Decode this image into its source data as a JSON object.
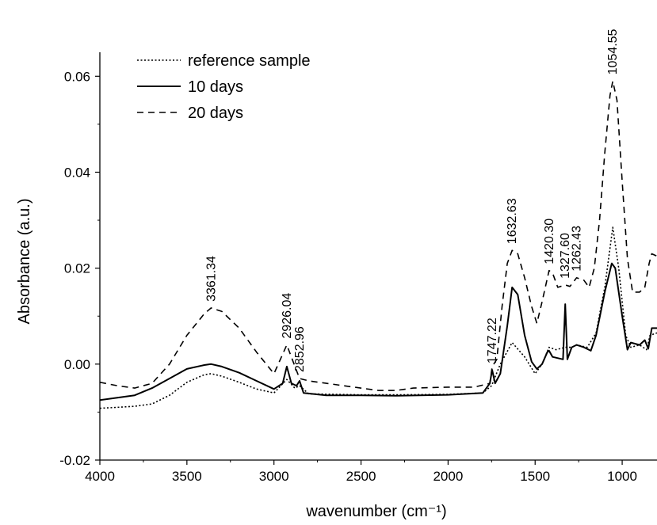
{
  "chart_data": {
    "type": "line",
    "title": "",
    "xlabel": "wavenumber (cm⁻¹)",
    "ylabel": "Absorbance (a.u.)",
    "xlim": [
      4000,
      800
    ],
    "ylim": [
      -0.02,
      0.065
    ],
    "x_reversed": true,
    "grid": false,
    "legend_position": "top-left",
    "x_ticks": [
      4000,
      3500,
      3000,
      2500,
      2000,
      1500,
      1000
    ],
    "x_tick_labels": [
      "4000",
      "3500",
      "3000",
      "2500",
      "2000",
      "1500",
      "1000"
    ],
    "y_ticks": [
      -0.02,
      0.0,
      0.02,
      0.04,
      0.06
    ],
    "y_tick_labels": [
      "-0.02",
      "0.00",
      "0.02",
      "0.04",
      "0.06"
    ],
    "series": [
      {
        "name": "reference sample",
        "style": "dotted",
        "points": [
          [
            4000,
            -0.0092
          ],
          [
            3900,
            -0.009
          ],
          [
            3800,
            -0.0088
          ],
          [
            3700,
            -0.0083
          ],
          [
            3600,
            -0.0065
          ],
          [
            3500,
            -0.0038
          ],
          [
            3400,
            -0.0022
          ],
          [
            3361,
            -0.002
          ],
          [
            3300,
            -0.0025
          ],
          [
            3200,
            -0.0038
          ],
          [
            3100,
            -0.0052
          ],
          [
            3000,
            -0.006
          ],
          [
            2926,
            -0.0032
          ],
          [
            2880,
            -0.005
          ],
          [
            2853,
            -0.0045
          ],
          [
            2800,
            -0.0062
          ],
          [
            2500,
            -0.0064
          ],
          [
            2300,
            -0.0064
          ],
          [
            2000,
            -0.0063
          ],
          [
            1800,
            -0.006
          ],
          [
            1750,
            -0.0045
          ],
          [
            1700,
            0.0
          ],
          [
            1632,
            0.0045
          ],
          [
            1560,
            0.0015
          ],
          [
            1500,
            -0.002
          ],
          [
            1460,
            0.0
          ],
          [
            1420,
            0.0035
          ],
          [
            1380,
            0.003
          ],
          [
            1327,
            0.0035
          ],
          [
            1290,
            0.0035
          ],
          [
            1262,
            0.004
          ],
          [
            1200,
            0.0035
          ],
          [
            1150,
            0.0065
          ],
          [
            1100,
            0.016
          ],
          [
            1054,
            0.0285
          ],
          [
            1020,
            0.02
          ],
          [
            980,
            0.006
          ],
          [
            950,
            0.0035
          ],
          [
            900,
            0.004
          ],
          [
            860,
            0.003
          ],
          [
            840,
            0.006
          ],
          [
            800,
            0.0065
          ]
        ]
      },
      {
        "name": "10 days",
        "style": "solid",
        "points": [
          [
            4000,
            -0.0075
          ],
          [
            3900,
            -0.007
          ],
          [
            3800,
            -0.0065
          ],
          [
            3700,
            -0.005
          ],
          [
            3600,
            -0.003
          ],
          [
            3500,
            -0.001
          ],
          [
            3400,
            -0.0002
          ],
          [
            3361,
            0.0
          ],
          [
            3300,
            -0.0005
          ],
          [
            3200,
            -0.0018
          ],
          [
            3100,
            -0.0035
          ],
          [
            3000,
            -0.0052
          ],
          [
            2950,
            -0.004
          ],
          [
            2926,
            -0.0005
          ],
          [
            2900,
            -0.004
          ],
          [
            2870,
            -0.0045
          ],
          [
            2853,
            -0.0035
          ],
          [
            2830,
            -0.006
          ],
          [
            2700,
            -0.0065
          ],
          [
            2500,
            -0.0065
          ],
          [
            2300,
            -0.0066
          ],
          [
            2000,
            -0.0064
          ],
          [
            1800,
            -0.006
          ],
          [
            1760,
            -0.004
          ],
          [
            1747,
            -0.0012
          ],
          [
            1730,
            -0.004
          ],
          [
            1700,
            -0.002
          ],
          [
            1660,
            0.008
          ],
          [
            1632,
            0.016
          ],
          [
            1600,
            0.0145
          ],
          [
            1560,
            0.006
          ],
          [
            1520,
            0.0005
          ],
          [
            1490,
            -0.001
          ],
          [
            1460,
            0.0
          ],
          [
            1430,
            0.0025
          ],
          [
            1420,
            0.0028
          ],
          [
            1400,
            0.0015
          ],
          [
            1340,
            0.001
          ],
          [
            1327,
            0.0125
          ],
          [
            1315,
            0.001
          ],
          [
            1290,
            0.0035
          ],
          [
            1262,
            0.004
          ],
          [
            1220,
            0.0035
          ],
          [
            1180,
            0.0028
          ],
          [
            1150,
            0.006
          ],
          [
            1100,
            0.015
          ],
          [
            1060,
            0.021
          ],
          [
            1040,
            0.02
          ],
          [
            1000,
            0.01
          ],
          [
            970,
            0.003
          ],
          [
            950,
            0.0045
          ],
          [
            900,
            0.004
          ],
          [
            870,
            0.005
          ],
          [
            850,
            0.0032
          ],
          [
            830,
            0.0075
          ],
          [
            800,
            0.0075
          ]
        ]
      },
      {
        "name": "20 days",
        "style": "dashed",
        "points": [
          [
            4000,
            -0.0038
          ],
          [
            3900,
            -0.0045
          ],
          [
            3800,
            -0.005
          ],
          [
            3700,
            -0.004
          ],
          [
            3600,
            0.0
          ],
          [
            3500,
            0.006
          ],
          [
            3400,
            0.0105
          ],
          [
            3361,
            0.0117
          ],
          [
            3300,
            0.011
          ],
          [
            3200,
            0.0075
          ],
          [
            3100,
            0.0025
          ],
          [
            3000,
            -0.002
          ],
          [
            2926,
            0.004
          ],
          [
            2890,
            0.0005
          ],
          [
            2853,
            -0.003
          ],
          [
            2800,
            -0.0035
          ],
          [
            2600,
            -0.0045
          ],
          [
            2400,
            -0.0055
          ],
          [
            2300,
            -0.0055
          ],
          [
            2200,
            -0.005
          ],
          [
            2000,
            -0.0048
          ],
          [
            1850,
            -0.0048
          ],
          [
            1760,
            -0.004
          ],
          [
            1747,
            -0.0005
          ],
          [
            1720,
            0.001
          ],
          [
            1690,
            0.012
          ],
          [
            1660,
            0.021
          ],
          [
            1632,
            0.0237
          ],
          [
            1600,
            0.023
          ],
          [
            1560,
            0.018
          ],
          [
            1520,
            0.012
          ],
          [
            1490,
            0.0085
          ],
          [
            1460,
            0.013
          ],
          [
            1420,
            0.0195
          ],
          [
            1400,
            0.019
          ],
          [
            1370,
            0.016
          ],
          [
            1327,
            0.0165
          ],
          [
            1300,
            0.0162
          ],
          [
            1262,
            0.018
          ],
          [
            1220,
            0.0175
          ],
          [
            1190,
            0.016
          ],
          [
            1160,
            0.02
          ],
          [
            1130,
            0.03
          ],
          [
            1100,
            0.044
          ],
          [
            1070,
            0.056
          ],
          [
            1054,
            0.059
          ],
          [
            1030,
            0.055
          ],
          [
            1000,
            0.038
          ],
          [
            970,
            0.022
          ],
          [
            940,
            0.015
          ],
          [
            900,
            0.015
          ],
          [
            870,
            0.016
          ],
          [
            845,
            0.021
          ],
          [
            830,
            0.023
          ],
          [
            800,
            0.0225
          ]
        ]
      }
    ],
    "annotations": [
      {
        "text": "3361.34",
        "x": 3361,
        "y": 0.0117
      },
      {
        "text": "2926.04",
        "x": 2926,
        "y": 0.004
      },
      {
        "text": "2852.96",
        "x": 2853,
        "y": -0.003
      },
      {
        "text": "1747.22",
        "x": 1747,
        "y": -0.0012
      },
      {
        "text": "1632.63",
        "x": 1632,
        "y": 0.0237
      },
      {
        "text": "1420.30",
        "x": 1420,
        "y": 0.0195
      },
      {
        "text": "1327.60",
        "x": 1327,
        "y": 0.0165
      },
      {
        "text": "1262.43",
        "x": 1262,
        "y": 0.018
      },
      {
        "text": "1054.55",
        "x": 1054,
        "y": 0.059
      }
    ]
  }
}
